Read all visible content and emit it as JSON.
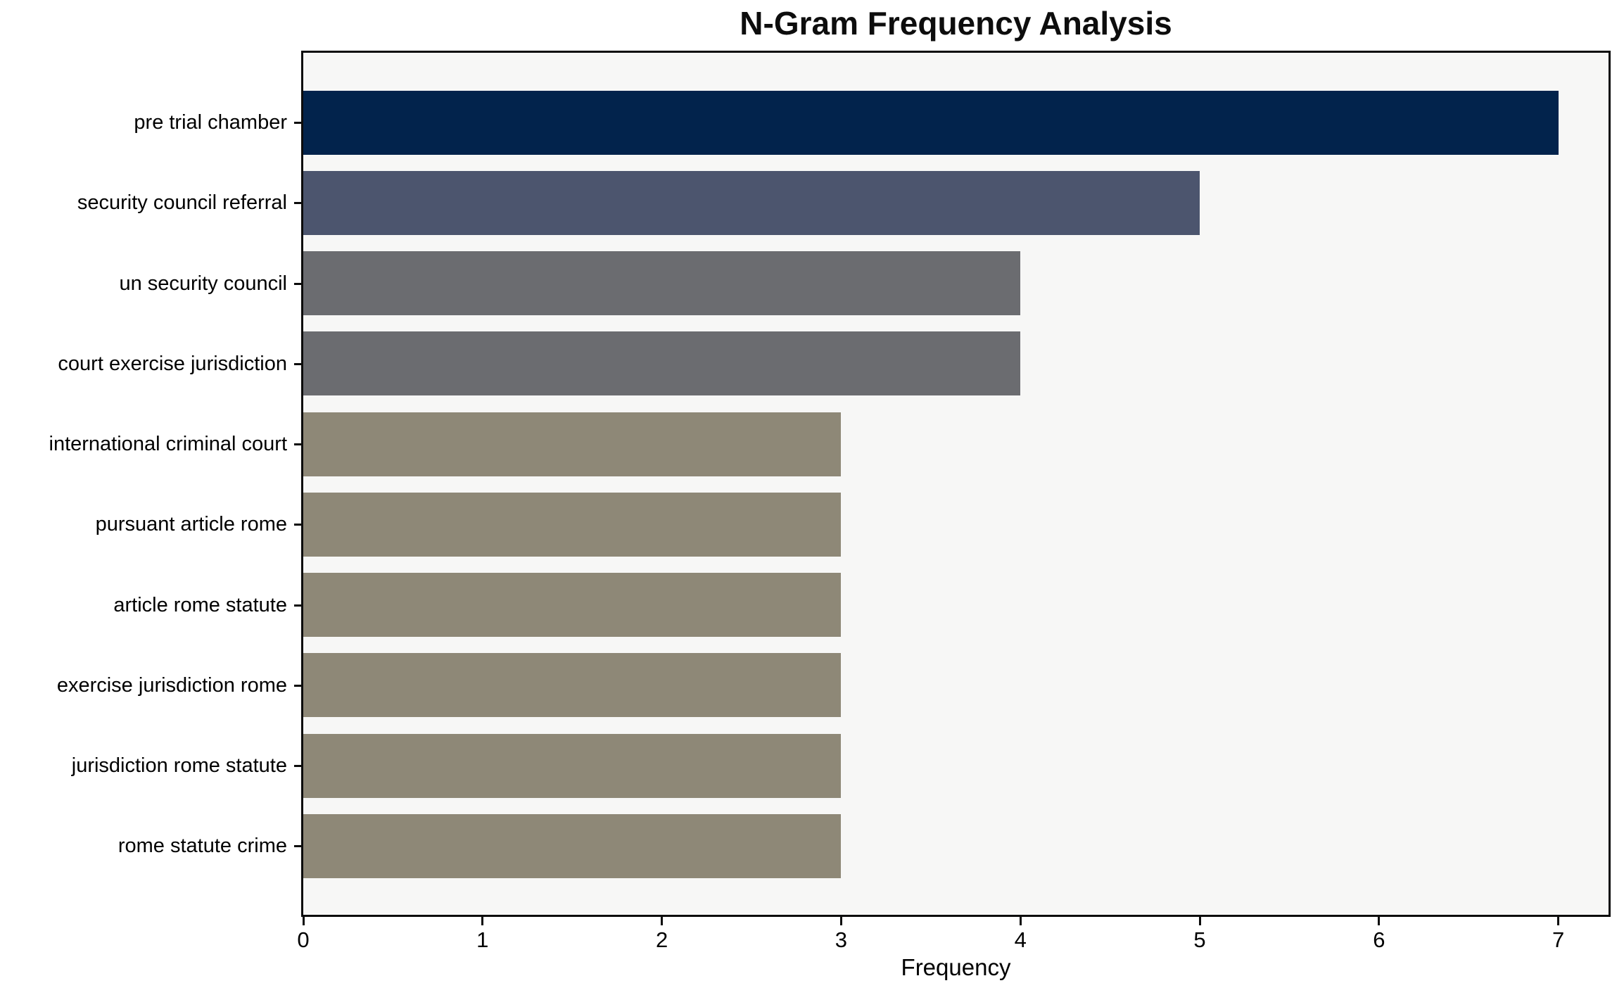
{
  "chart_data": {
    "type": "bar",
    "orientation": "horizontal",
    "title": "N-Gram Frequency Analysis",
    "xlabel": "Frequency",
    "ylabel": "",
    "categories": [
      "pre trial chamber",
      "security council referral",
      "un security council",
      "court exercise jurisdiction",
      "international criminal court",
      "pursuant article rome",
      "article rome statute",
      "exercise jurisdiction rome",
      "jurisdiction rome statute",
      "rome statute crime"
    ],
    "values": [
      7,
      5,
      4,
      4,
      3,
      3,
      3,
      3,
      3,
      3
    ],
    "bar_colors": [
      "#02234c",
      "#4c556e",
      "#6b6c70",
      "#6b6c70",
      "#8e8877",
      "#8e8877",
      "#8e8877",
      "#8e8877",
      "#8e8877",
      "#8e8877"
    ],
    "x_ticks": [
      0,
      1,
      2,
      3,
      4,
      5,
      6,
      7
    ],
    "xlim": [
      0,
      7.28
    ],
    "grid": false,
    "legend_position": "none",
    "plot_background": "#f7f7f6",
    "figure_background": "#ffffff",
    "spine_color": "#0c0c0c"
  }
}
